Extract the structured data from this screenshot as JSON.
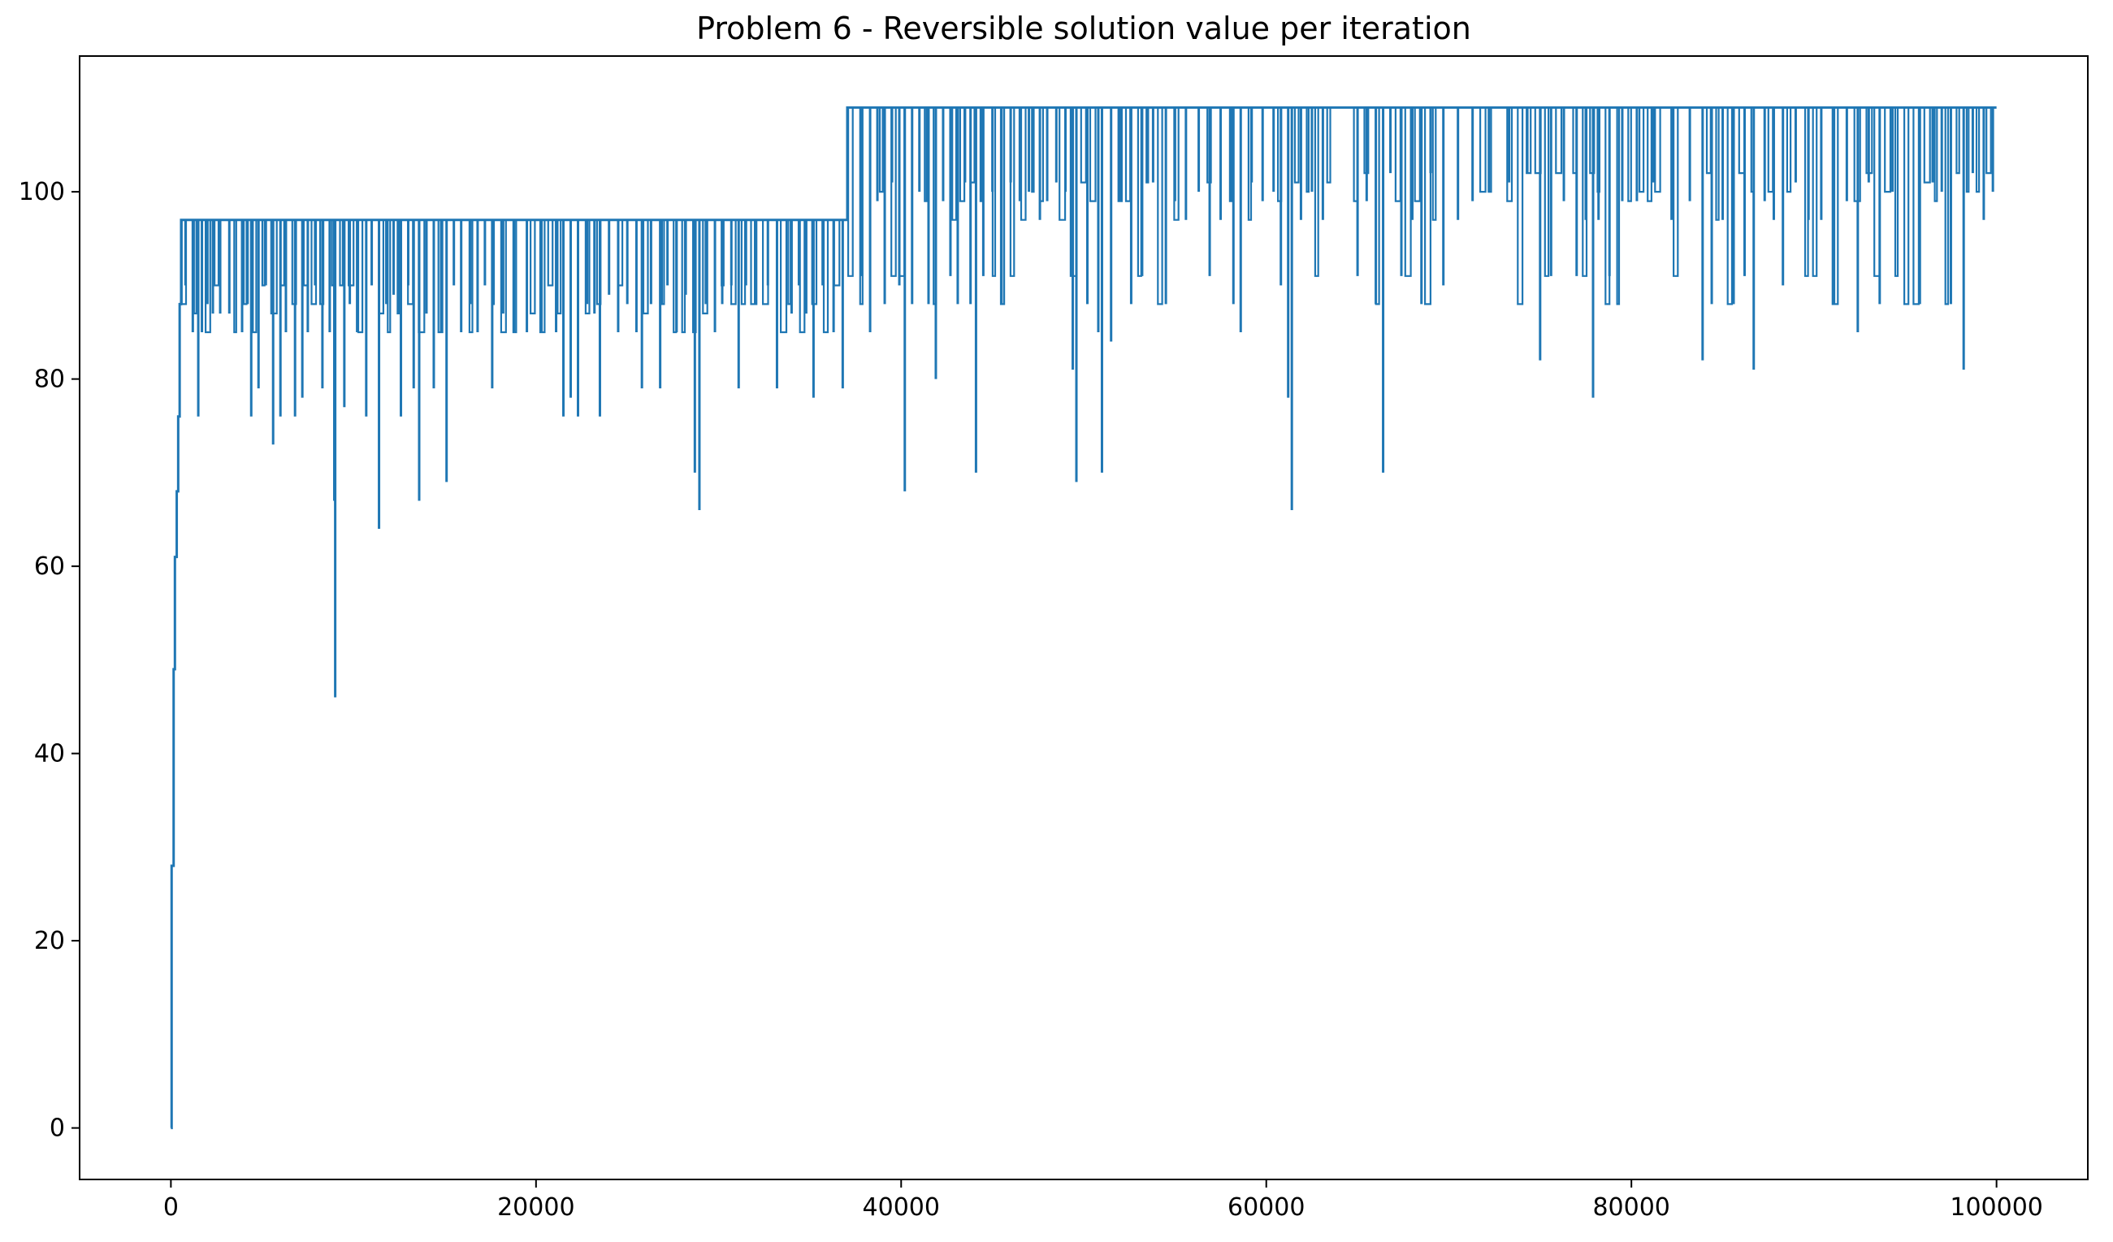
{
  "chart_data": {
    "type": "line",
    "title": "Problem 6 - Reversible solution value per iteration",
    "xlabel": "",
    "ylabel": "",
    "xlim": [
      -5000,
      105000
    ],
    "ylim": [
      -5.5,
      114.5
    ],
    "x_ticks": [
      0,
      20000,
      40000,
      60000,
      80000,
      100000
    ],
    "x_tick_labels": [
      "0",
      "20000",
      "40000",
      "60000",
      "80000",
      "100000"
    ],
    "y_ticks": [
      0,
      20,
      40,
      60,
      80,
      100
    ],
    "y_tick_labels": [
      "0",
      "20",
      "40",
      "60",
      "80",
      "100"
    ],
    "grid": false,
    "legend": "none",
    "colors": {
      "line": "#1f77b4",
      "axes": "#000000",
      "background": "#ffffff"
    },
    "series": [
      {
        "baseline": [
          {
            "x": 0,
            "y": 0
          },
          {
            "x": 40,
            "y": 28
          },
          {
            "x": 150,
            "y": 49
          },
          {
            "x": 220,
            "y": 61
          },
          {
            "x": 320,
            "y": 68
          },
          {
            "x": 400,
            "y": 76
          },
          {
            "x": 480,
            "y": 88
          },
          {
            "x": 560,
            "y": 97
          },
          {
            "x": 37000,
            "y": 97
          },
          {
            "x": 37050,
            "y": 109
          },
          {
            "x": 100000,
            "y": 109
          }
        ],
        "dips": [
          {
            "x": 800,
            "y": 90
          },
          {
            "x": 1200,
            "y": 85
          },
          {
            "x": 1500,
            "y": 76
          },
          {
            "x": 1700,
            "y": 85
          },
          {
            "x": 2000,
            "y": 88
          },
          {
            "x": 2300,
            "y": 87
          },
          {
            "x": 2700,
            "y": 87
          },
          {
            "x": 3200,
            "y": 87
          },
          {
            "x": 3900,
            "y": 85
          },
          {
            "x": 4200,
            "y": 88
          },
          {
            "x": 4400,
            "y": 76
          },
          {
            "x": 4800,
            "y": 79
          },
          {
            "x": 5200,
            "y": 90
          },
          {
            "x": 5600,
            "y": 73
          },
          {
            "x": 6000,
            "y": 76
          },
          {
            "x": 6300,
            "y": 85
          },
          {
            "x": 6800,
            "y": 76
          },
          {
            "x": 7200,
            "y": 78
          },
          {
            "x": 7500,
            "y": 85
          },
          {
            "x": 7900,
            "y": 90
          },
          {
            "x": 8300,
            "y": 79
          },
          {
            "x": 8700,
            "y": 85
          },
          {
            "x": 8950,
            "y": 67
          },
          {
            "x": 9000,
            "y": 46
          },
          {
            "x": 9500,
            "y": 77
          },
          {
            "x": 9800,
            "y": 88
          },
          {
            "x": 10200,
            "y": 85
          },
          {
            "x": 10700,
            "y": 76
          },
          {
            "x": 11000,
            "y": 90
          },
          {
            "x": 11400,
            "y": 64
          },
          {
            "x": 11800,
            "y": 88
          },
          {
            "x": 12200,
            "y": 89
          },
          {
            "x": 12600,
            "y": 76
          },
          {
            "x": 13000,
            "y": 90
          },
          {
            "x": 13300,
            "y": 79
          },
          {
            "x": 13600,
            "y": 67
          },
          {
            "x": 14000,
            "y": 87
          },
          {
            "x": 14400,
            "y": 79
          },
          {
            "x": 14800,
            "y": 85
          },
          {
            "x": 15100,
            "y": 69
          },
          {
            "x": 15500,
            "y": 90
          },
          {
            "x": 15900,
            "y": 85
          },
          {
            "x": 16400,
            "y": 88
          },
          {
            "x": 16800,
            "y": 85
          },
          {
            "x": 17200,
            "y": 90
          },
          {
            "x": 17600,
            "y": 79
          },
          {
            "x": 18200,
            "y": 87
          },
          {
            "x": 18800,
            "y": 85
          },
          {
            "x": 19500,
            "y": 85
          },
          {
            "x": 20300,
            "y": 85
          },
          {
            "x": 21100,
            "y": 85
          },
          {
            "x": 21500,
            "y": 76
          },
          {
            "x": 21900,
            "y": 78
          },
          {
            "x": 22300,
            "y": 76
          },
          {
            "x": 22800,
            "y": 88
          },
          {
            "x": 23200,
            "y": 87
          },
          {
            "x": 23500,
            "y": 76
          },
          {
            "x": 24000,
            "y": 89
          },
          {
            "x": 24500,
            "y": 85
          },
          {
            "x": 25000,
            "y": 88
          },
          {
            "x": 25500,
            "y": 85
          },
          {
            "x": 25800,
            "y": 79
          },
          {
            "x": 26300,
            "y": 88
          },
          {
            "x": 26800,
            "y": 79
          },
          {
            "x": 27200,
            "y": 90
          },
          {
            "x": 27700,
            "y": 85
          },
          {
            "x": 28200,
            "y": 89
          },
          {
            "x": 28700,
            "y": 70
          },
          {
            "x": 28950,
            "y": 66
          },
          {
            "x": 29300,
            "y": 88
          },
          {
            "x": 29800,
            "y": 85
          },
          {
            "x": 30200,
            "y": 88
          },
          {
            "x": 30700,
            "y": 90
          },
          {
            "x": 31100,
            "y": 79
          },
          {
            "x": 31500,
            "y": 90
          },
          {
            "x": 32000,
            "y": 88
          },
          {
            "x": 32700,
            "y": 90
          },
          {
            "x": 33200,
            "y": 79
          },
          {
            "x": 34000,
            "y": 87
          },
          {
            "x": 34400,
            "y": 90
          },
          {
            "x": 34800,
            "y": 87
          },
          {
            "x": 35200,
            "y": 78
          },
          {
            "x": 35700,
            "y": 90
          },
          {
            "x": 36300,
            "y": 85
          },
          {
            "x": 36800,
            "y": 79
          },
          {
            "x": 37800,
            "y": 91
          },
          {
            "x": 38300,
            "y": 85
          },
          {
            "x": 38700,
            "y": 99
          },
          {
            "x": 39100,
            "y": 88
          },
          {
            "x": 39500,
            "y": 101
          },
          {
            "x": 39900,
            "y": 90
          },
          {
            "x": 40200,
            "y": 68
          },
          {
            "x": 40600,
            "y": 88
          },
          {
            "x": 41000,
            "y": 100
          },
          {
            "x": 41500,
            "y": 88
          },
          {
            "x": 41900,
            "y": 80
          },
          {
            "x": 42300,
            "y": 99
          },
          {
            "x": 42700,
            "y": 91
          },
          {
            "x": 43100,
            "y": 88
          },
          {
            "x": 43500,
            "y": 101
          },
          {
            "x": 43800,
            "y": 88
          },
          {
            "x": 44100,
            "y": 70
          },
          {
            "x": 44500,
            "y": 91
          },
          {
            "x": 45000,
            "y": 100
          },
          {
            "x": 45500,
            "y": 88
          },
          {
            "x": 46000,
            "y": 101
          },
          {
            "x": 46500,
            "y": 99
          },
          {
            "x": 47000,
            "y": 100
          },
          {
            "x": 47600,
            "y": 97
          },
          {
            "x": 48000,
            "y": 99
          },
          {
            "x": 48500,
            "y": 101
          },
          {
            "x": 49000,
            "y": 100
          },
          {
            "x": 49400,
            "y": 81
          },
          {
            "x": 49600,
            "y": 69
          },
          {
            "x": 50200,
            "y": 88
          },
          {
            "x": 50800,
            "y": 85
          },
          {
            "x": 51000,
            "y": 70
          },
          {
            "x": 51500,
            "y": 84
          },
          {
            "x": 52000,
            "y": 99
          },
          {
            "x": 52600,
            "y": 88
          },
          {
            "x": 53200,
            "y": 91
          },
          {
            "x": 53800,
            "y": 101
          },
          {
            "x": 54500,
            "y": 88
          },
          {
            "x": 55000,
            "y": 99
          },
          {
            "x": 55600,
            "y": 97
          },
          {
            "x": 56300,
            "y": 100
          },
          {
            "x": 56900,
            "y": 91
          },
          {
            "x": 57500,
            "y": 97
          },
          {
            "x": 58200,
            "y": 88
          },
          {
            "x": 58600,
            "y": 85
          },
          {
            "x": 59200,
            "y": 101
          },
          {
            "x": 59800,
            "y": 99
          },
          {
            "x": 60400,
            "y": 100
          },
          {
            "x": 60800,
            "y": 90
          },
          {
            "x": 61200,
            "y": 78
          },
          {
            "x": 61400,
            "y": 66
          },
          {
            "x": 61900,
            "y": 97
          },
          {
            "x": 62500,
            "y": 100
          },
          {
            "x": 63100,
            "y": 97
          },
          {
            "x": 65000,
            "y": 91
          },
          {
            "x": 65500,
            "y": 99
          },
          {
            "x": 66000,
            "y": 88
          },
          {
            "x": 66400,
            "y": 70
          },
          {
            "x": 66800,
            "y": 102
          },
          {
            "x": 67400,
            "y": 91
          },
          {
            "x": 68000,
            "y": 97
          },
          {
            "x": 68500,
            "y": 88
          },
          {
            "x": 69000,
            "y": 102
          },
          {
            "x": 69700,
            "y": 90
          },
          {
            "x": 70500,
            "y": 97
          },
          {
            "x": 71300,
            "y": 99
          },
          {
            "x": 72200,
            "y": 100
          },
          {
            "x": 73300,
            "y": 101
          },
          {
            "x": 74300,
            "y": 102
          },
          {
            "x": 75000,
            "y": 82
          },
          {
            "x": 75600,
            "y": 91
          },
          {
            "x": 76300,
            "y": 99
          },
          {
            "x": 77000,
            "y": 91
          },
          {
            "x": 77500,
            "y": 97
          },
          {
            "x": 77900,
            "y": 78
          },
          {
            "x": 78200,
            "y": 97
          },
          {
            "x": 78800,
            "y": 91
          },
          {
            "x": 79500,
            "y": 99
          },
          {
            "x": 80300,
            "y": 99
          },
          {
            "x": 81200,
            "y": 101
          },
          {
            "x": 82200,
            "y": 97
          },
          {
            "x": 83200,
            "y": 99
          },
          {
            "x": 83900,
            "y": 82
          },
          {
            "x": 84400,
            "y": 88
          },
          {
            "x": 85000,
            "y": 97
          },
          {
            "x": 85600,
            "y": 88
          },
          {
            "x": 86200,
            "y": 91
          },
          {
            "x": 86700,
            "y": 81
          },
          {
            "x": 87300,
            "y": 99
          },
          {
            "x": 87800,
            "y": 97
          },
          {
            "x": 88300,
            "y": 90
          },
          {
            "x": 89000,
            "y": 101
          },
          {
            "x": 89700,
            "y": 97
          },
          {
            "x": 90400,
            "y": 97
          },
          {
            "x": 91100,
            "y": 88
          },
          {
            "x": 91800,
            "y": 99
          },
          {
            "x": 92400,
            "y": 85
          },
          {
            "x": 93000,
            "y": 101
          },
          {
            "x": 93600,
            "y": 88
          },
          {
            "x": 94300,
            "y": 100
          },
          {
            "x": 95800,
            "y": 88
          },
          {
            "x": 96500,
            "y": 101
          },
          {
            "x": 97000,
            "y": 100
          },
          {
            "x": 97500,
            "y": 88
          },
          {
            "x": 98200,
            "y": 81
          },
          {
            "x": 98700,
            "y": 102
          },
          {
            "x": 99300,
            "y": 97
          },
          {
            "x": 99800,
            "y": 100
          }
        ],
        "dense_regions": [
          {
            "x_start": 600,
            "x_end": 37000,
            "levels": [
              97,
              90,
              88,
              87,
              85
            ]
          },
          {
            "x_start": 37100,
            "x_end": 63500,
            "levels": [
              109,
              101,
              100,
              99,
              97,
              91,
              88
            ]
          },
          {
            "x_start": 64800,
            "x_end": 100000,
            "levels": [
              109,
              102,
              101,
              100,
              99,
              97,
              91,
              88
            ]
          }
        ]
      }
    ]
  }
}
